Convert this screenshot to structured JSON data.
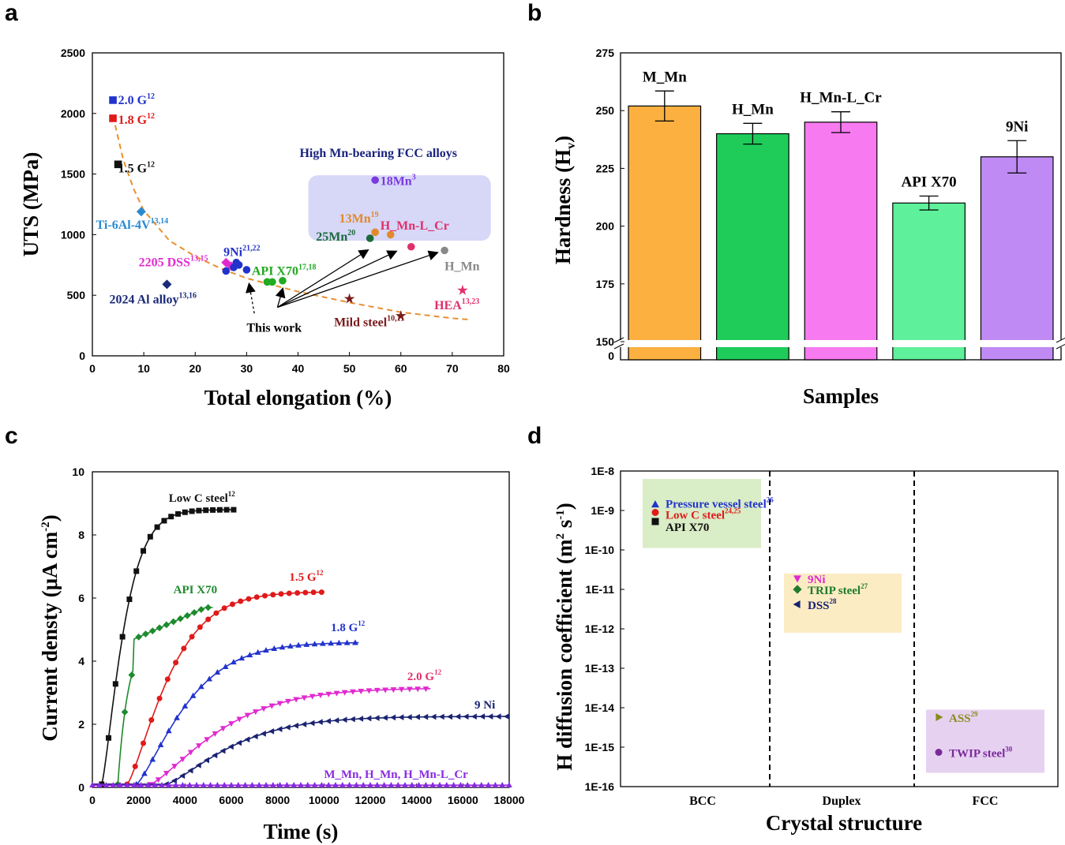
{
  "panels": {
    "a": "a",
    "b": "b",
    "c": "c",
    "d": "d"
  },
  "chart_data": [
    {
      "panel": "a",
      "type": "scatter",
      "xlabel": "Total elongation (%)",
      "ylabel": "UTS (MPa)",
      "xlim": [
        0,
        80
      ],
      "ylim": [
        0,
        2500
      ],
      "xticks": [
        "0",
        "10",
        "20",
        "30",
        "40",
        "50",
        "60",
        "70",
        "80"
      ],
      "yticks": [
        "0",
        "500",
        "1000",
        "1500",
        "2000",
        "2500"
      ],
      "group_label": "High Mn-bearing FCC alloys",
      "annotation": "This work",
      "points": [
        {
          "name": "2.0 G",
          "ref": "12",
          "color": "#2233cc",
          "marker": "square",
          "data": [
            [
              4,
              2110
            ]
          ]
        },
        {
          "name": "1.8 G",
          "ref": "12",
          "color": "#e01a1a",
          "marker": "square",
          "data": [
            [
              4,
              1960
            ]
          ]
        },
        {
          "name": "1.5 G",
          "ref": "12",
          "color": "#111111",
          "marker": "square",
          "data": [
            [
              5,
              1580
            ]
          ]
        },
        {
          "name": "Ti-6Al-4V",
          "ref": "13,14",
          "color": "#2a8ad0",
          "marker": "diamond",
          "data": [
            [
              9.5,
              1190
            ]
          ]
        },
        {
          "name": "2024 Al alloy",
          "ref": "13,16",
          "color": "#1a2a7a",
          "marker": "diamond",
          "data": [
            [
              14.5,
              590
            ]
          ]
        },
        {
          "name": "2205 DSS",
          "ref": "13,15",
          "color": "#e02ad0",
          "marker": "diamond",
          "data": [
            [
              26,
              770
            ],
            [
              27,
              740
            ]
          ]
        },
        {
          "name": "9Ni",
          "ref": "21,22",
          "color": "#2233cc",
          "marker": "circle",
          "data": [
            [
              26,
              700
            ],
            [
              27.5,
              730
            ],
            [
              28,
              770
            ],
            [
              28.5,
              750
            ],
            [
              30,
              710
            ]
          ]
        },
        {
          "name": "API X70",
          "ref": "17,18",
          "color": "#22aa22",
          "marker": "circle",
          "data": [
            [
              34,
              610
            ],
            [
              35,
              610
            ],
            [
              37,
              620
            ]
          ]
        },
        {
          "name": "Mild steel",
          "ref": "10,11",
          "color": "#7a1a1a",
          "marker": "star",
          "data": [
            [
              50,
              470
            ],
            [
              60,
              330
            ]
          ]
        },
        {
          "name": "HEA",
          "ref": "13,23",
          "color": "#e0306a",
          "marker": "star",
          "data": [
            [
              72,
              540
            ]
          ]
        },
        {
          "name": "18Mn",
          "ref": "3",
          "color": "#7a3ae0",
          "marker": "circle",
          "data": [
            [
              55,
              1450
            ]
          ]
        },
        {
          "name": "13Mn",
          "ref": "19",
          "color": "#e08a2a",
          "marker": "circle",
          "data": [
            [
              55,
              1020
            ],
            [
              58,
              1000
            ]
          ]
        },
        {
          "name": "25Mn",
          "ref": "20",
          "color": "#1a6a3a",
          "marker": "circle",
          "data": [
            [
              54,
              970
            ]
          ]
        },
        {
          "name": "H_Mn-L_Cr",
          "ref": "",
          "color": "#e0306a",
          "marker": "circle",
          "data": [
            [
              62,
              900
            ]
          ]
        },
        {
          "name": "H_Mn",
          "ref": "",
          "color": "#888888",
          "marker": "circle",
          "data": [
            [
              68.5,
              870
            ]
          ]
        }
      ],
      "trend_curve": [
        [
          4,
          1980
        ],
        [
          6,
          1620
        ],
        [
          8,
          1380
        ],
        [
          10,
          1200
        ],
        [
          15,
          950
        ],
        [
          20,
          820
        ],
        [
          25,
          720
        ],
        [
          30,
          640
        ],
        [
          40,
          530
        ],
        [
          50,
          440
        ],
        [
          60,
          360
        ],
        [
          70,
          310
        ],
        [
          73,
          300
        ]
      ]
    },
    {
      "panel": "b",
      "type": "bar",
      "xlabel": "Samples",
      "ylabel": "Hardness (H",
      "ylabel_sub": "v",
      "ylabel_end": ")",
      "ylim": [
        150,
        275
      ],
      "yticks": [
        "150",
        "175",
        "200",
        "225",
        "250",
        "275"
      ],
      "zero_tick": "0",
      "categories": [
        "M_Mn",
        "H_Mn",
        "H_Mn-L_Cr",
        "API X70",
        "9Ni"
      ],
      "values": [
        252,
        240,
        245,
        210,
        230
      ],
      "errors": [
        6.5,
        4.5,
        4.5,
        3,
        7
      ],
      "colors": [
        "#fbb040",
        "#1fcc5a",
        "#f77af0",
        "#5ef09a",
        "#c08af5"
      ]
    },
    {
      "panel": "c",
      "type": "line",
      "xlabel": "Time (s)",
      "ylabel": "Current densty (μA cm",
      "ylabel_sup": "-2",
      "ylabel_end": ")",
      "xlim": [
        0,
        18000
      ],
      "ylim": [
        0,
        10
      ],
      "xticks": [
        "0",
        "2000",
        "4000",
        "6000",
        "8000",
        "10000",
        "12000",
        "14000",
        "16000",
        "18000"
      ],
      "yticks": [
        "0",
        "2",
        "4",
        "6",
        "8",
        "10"
      ],
      "series": [
        {
          "name": "Low C steel",
          "ref": "12",
          "color": "#111111",
          "marker": "square",
          "t0": 400,
          "ymax": 8.8,
          "k": 1100,
          "t1": 6200
        },
        {
          "name": "API X70",
          "ref": "",
          "color": "#1e8a2e",
          "marker": "diamond",
          "t0": 1100,
          "ymax": 5.7,
          "k": 450,
          "t1": 5200,
          "mode": "xa"
        },
        {
          "name": "1.5 G",
          "ref": "12",
          "color": "#e01a1a",
          "marker": "circle",
          "t0": 1500,
          "ymax": 6.2,
          "k": 2100,
          "t1": 10000
        },
        {
          "name": "1.8 G",
          "ref": "12",
          "color": "#2233cc",
          "marker": "triangle-up",
          "t0": 1900,
          "ymax": 4.6,
          "k": 2500,
          "t1": 11500
        },
        {
          "name": "2.0 G",
          "ref": "12",
          "color": "#e02ad0",
          "marker": "triangle-down",
          "t0": 2500,
          "ymax": 3.15,
          "k": 3500,
          "t1": 14600
        },
        {
          "name": "9 Ni",
          "ref": "",
          "color": "#1a2370",
          "marker": "triangle-left",
          "t0": 3200,
          "ymax": 2.25,
          "k": 3300,
          "t1": 18000
        },
        {
          "name": "M_Mn, H_Mn, H_Mn-L_Cr",
          "ref": "",
          "color": "#8a2ae0",
          "marker": "triangle-up",
          "t0": 0,
          "ymax": 0.05,
          "k": 1,
          "t1": 18000
        }
      ]
    },
    {
      "panel": "d",
      "type": "scatter",
      "xlabel": "Crystal structure",
      "ylabel": "H diffusion coefficient (m",
      "ylabel_sup1": "2",
      "ylabel_mid": " s",
      "ylabel_sup2": "-1",
      "ylabel_end": ")",
      "categories": [
        "BCC",
        "Duplex",
        "FCC"
      ],
      "yticks": [
        "1E-8",
        "1E-9",
        "1E-10",
        "1E-11",
        "1E-12",
        "1E-13",
        "1E-14",
        "1E-15",
        "1E-16"
      ],
      "points": [
        {
          "name": "Pressure vessel steel",
          "ref": "26",
          "group": "BCC",
          "log10": -8.85,
          "color": "#2233cc",
          "marker": "triangle-up"
        },
        {
          "name": "Low C steel",
          "ref": "24,25",
          "group": "BCC",
          "log10": -9.05,
          "color": "#e01a1a",
          "marker": "circle"
        },
        {
          "name": "API X70",
          "ref": "",
          "group": "BCC",
          "log10": -9.28,
          "color": "#111111",
          "marker": "square"
        },
        {
          "name": "9Ni",
          "ref": "",
          "group": "Duplex",
          "log10": -10.72,
          "color": "#e02ad0",
          "marker": "triangle-down"
        },
        {
          "name": "TRIP steel",
          "ref": "27",
          "group": "Duplex",
          "log10": -11.0,
          "color": "#1e7a2e",
          "marker": "diamond"
        },
        {
          "name": "DSS",
          "ref": "28",
          "group": "Duplex",
          "log10": -11.38,
          "color": "#1a2370",
          "marker": "triangle-left"
        },
        {
          "name": "ASS",
          "ref": "29",
          "group": "FCC",
          "log10": -14.24,
          "color": "#8a8a1a",
          "marker": "triangle-right"
        },
        {
          "name": "TWIP steel",
          "ref": "30",
          "group": "FCC",
          "log10": -15.13,
          "color": "#7a2a9a",
          "marker": "circle"
        }
      ]
    }
  ]
}
